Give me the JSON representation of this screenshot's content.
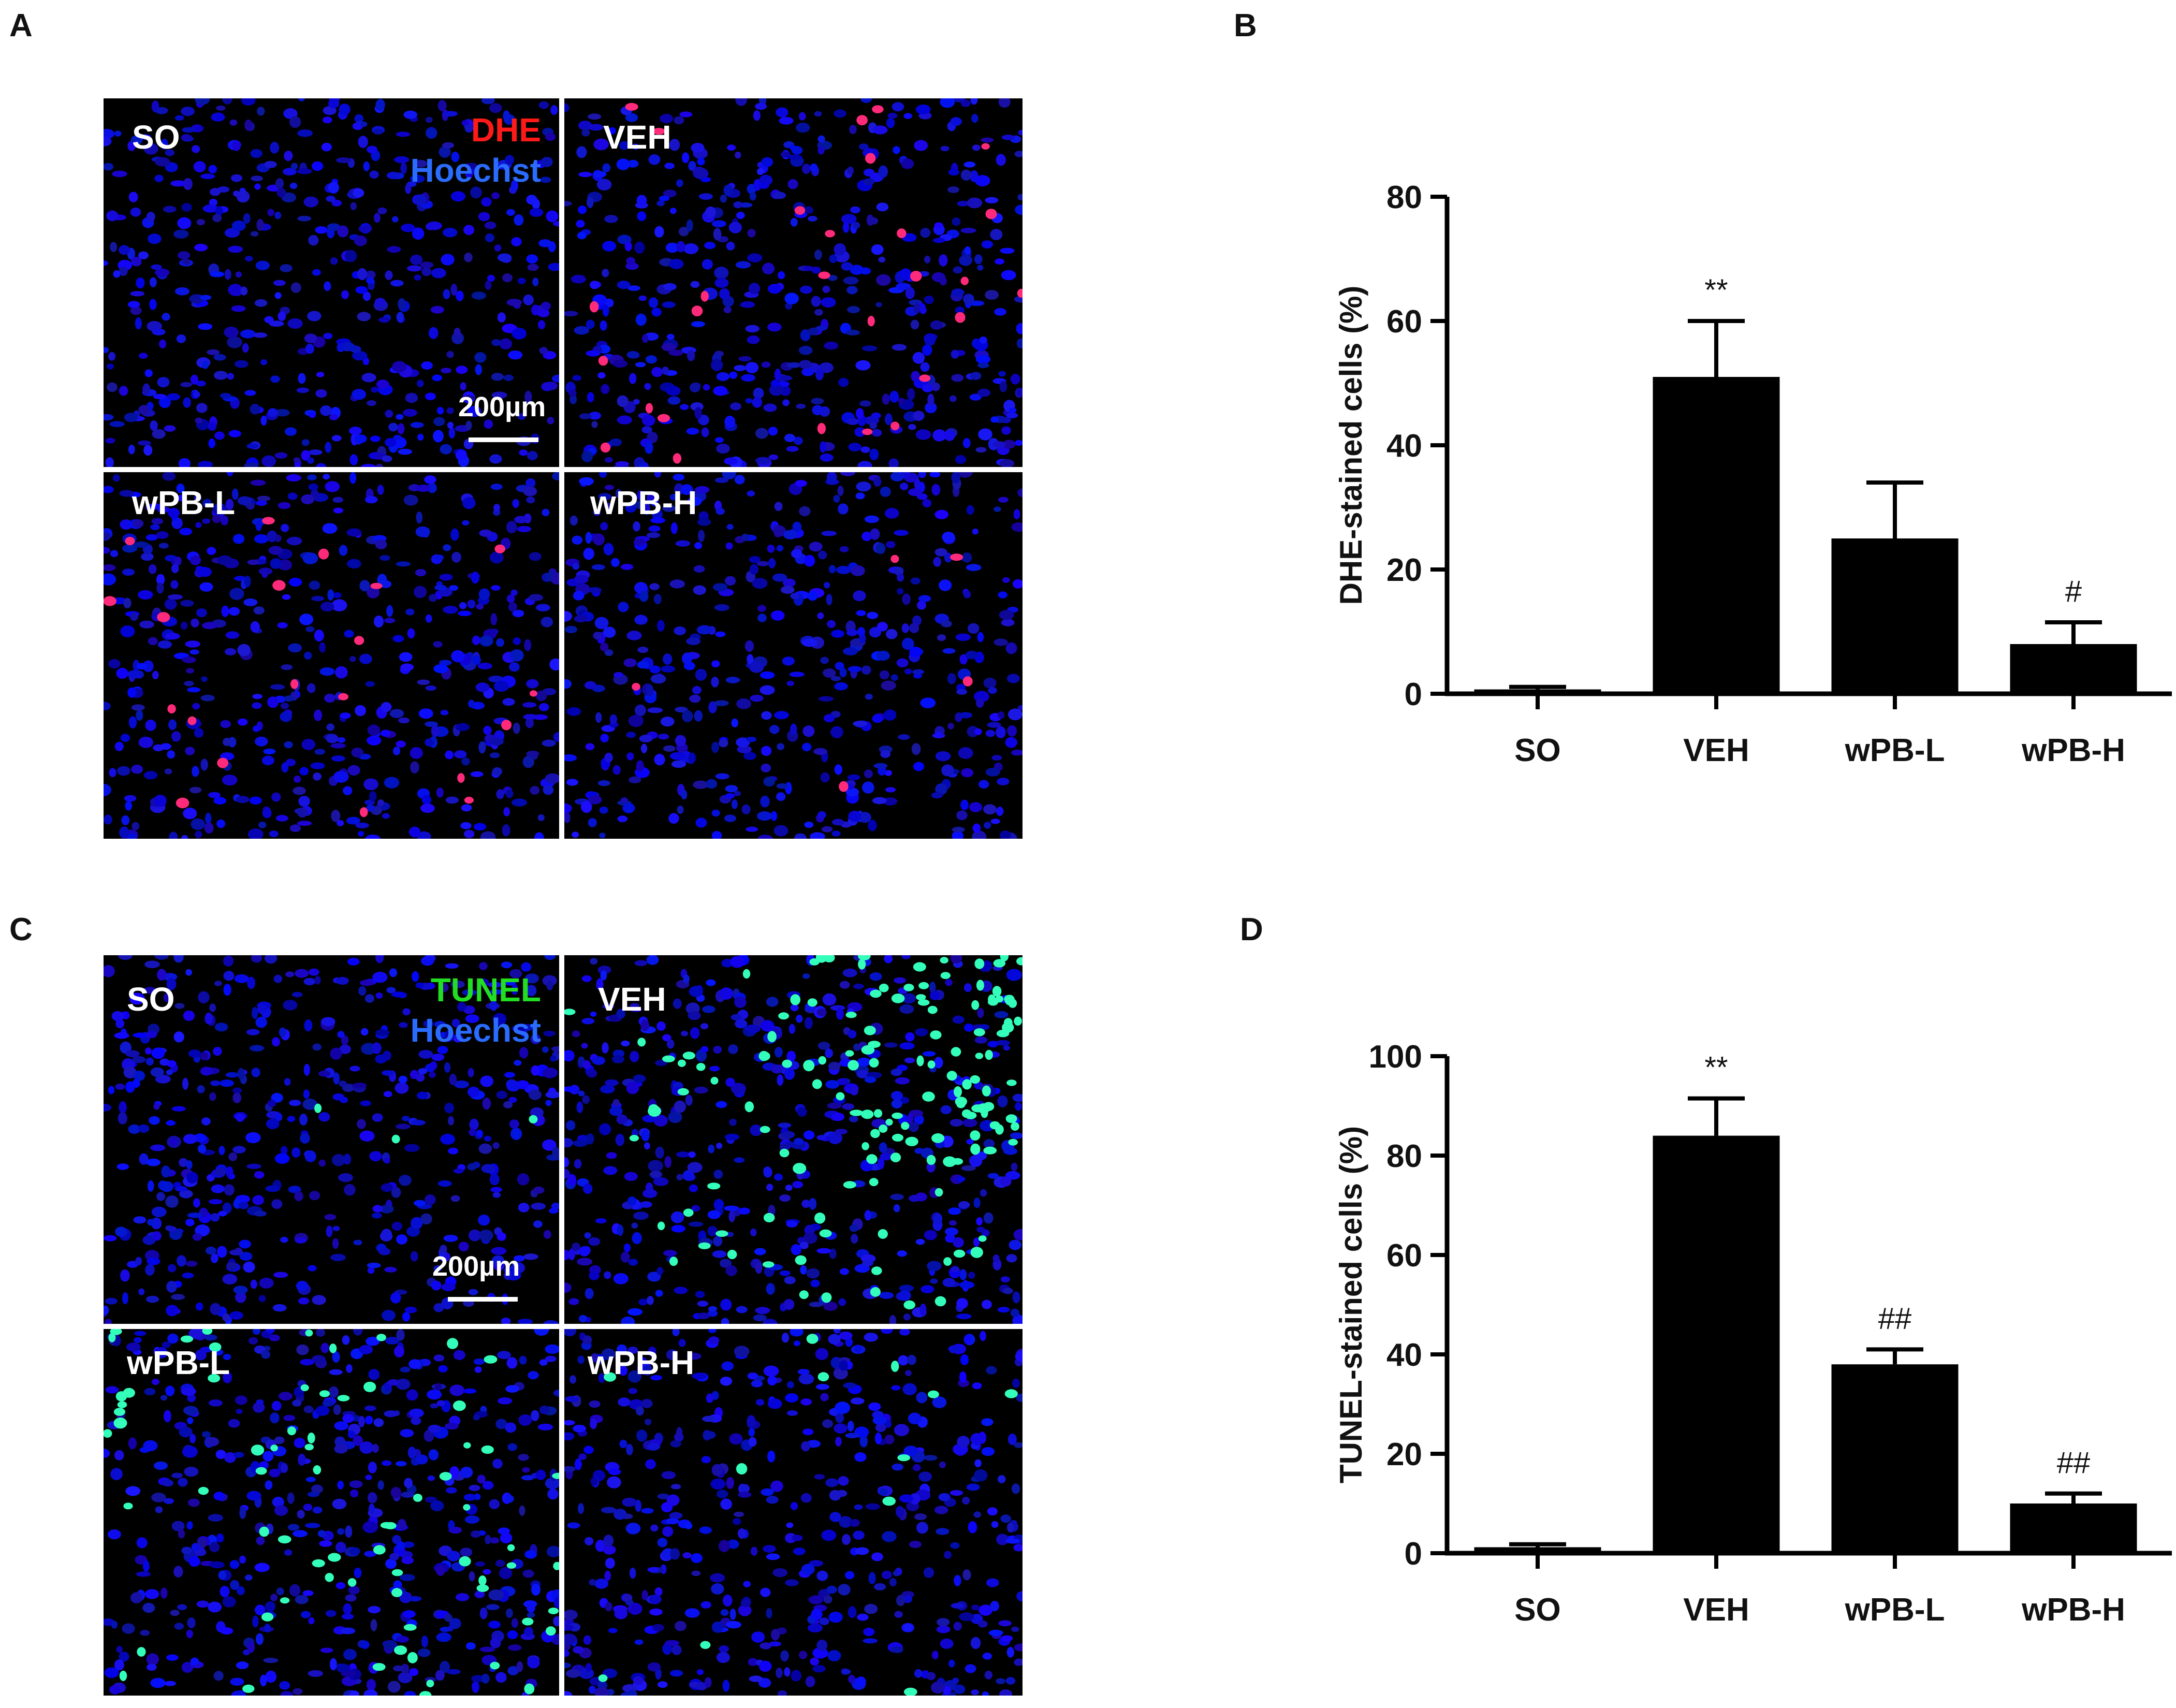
{
  "panel_letters": {
    "a": "A",
    "b": "B",
    "c": "C",
    "d": "D"
  },
  "panel_a": {
    "stain_1": "DHE",
    "stain_2": "Hoechst",
    "stain_1_color": "#ff1a1a",
    "stain_2_color": "#2a6cff",
    "marker_color": "#ff2a7a",
    "tiles": [
      "SO",
      "VEH",
      "wPB-L",
      "wPB-H"
    ],
    "scale_label": "200µm"
  },
  "panel_c": {
    "stain_1": "TUNEL",
    "stain_2": "Hoechst",
    "stain_1_color": "#22dd22",
    "stain_2_color": "#2a6cff",
    "marker_color": "#33ffbb",
    "tiles": [
      "SO",
      "VEH",
      "wPB-L",
      "wPB-H"
    ],
    "scale_label": "200µm"
  },
  "chart_data": [
    {
      "type": "bar",
      "categories": [
        "SO",
        "VEH",
        "wPB-L",
        "wPB-H"
      ],
      "values": [
        0.7,
        51,
        25,
        8
      ],
      "errors": [
        0.4,
        9,
        9,
        3.5
      ],
      "annotations": [
        "",
        "**",
        "",
        "#"
      ],
      "ylabel": "DHE-stained cells (%)",
      "ylim": [
        0,
        80
      ],
      "yticks": [
        0,
        20,
        40,
        60,
        80
      ],
      "bar_color": "#000000"
    },
    {
      "type": "bar",
      "categories": [
        "SO",
        "VEH",
        "wPB-L",
        "wPB-H"
      ],
      "values": [
        1.2,
        84,
        38,
        10
      ],
      "errors": [
        0.6,
        7.5,
        3,
        2
      ],
      "annotations": [
        "",
        "**",
        "##",
        "##"
      ],
      "ylabel": "TUNEL-stained cells (%)",
      "ylim": [
        0,
        100
      ],
      "yticks": [
        0,
        20,
        40,
        60,
        80,
        100
      ],
      "bar_color": "#000000"
    }
  ]
}
